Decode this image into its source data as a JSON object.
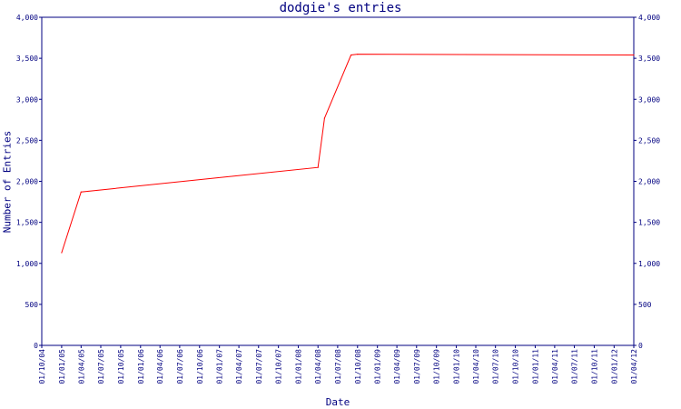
{
  "chart_data": {
    "type": "line",
    "title": "dodgie's entries",
    "xlabel": "Date",
    "ylabel": "Number of Entries",
    "ylim": [
      0,
      4000
    ],
    "y_ticks": [
      {
        "value": 0,
        "label": "0"
      },
      {
        "value": 500,
        "label": "500"
      },
      {
        "value": 1000,
        "label": "1,000"
      },
      {
        "value": 1500,
        "label": "1,500"
      },
      {
        "value": 2000,
        "label": "2,000"
      },
      {
        "value": 2500,
        "label": "2,500"
      },
      {
        "value": 3000,
        "label": "3,000"
      },
      {
        "value": 3500,
        "label": "3,500"
      },
      {
        "value": 4000,
        "label": "4,000"
      }
    ],
    "x_ticks": [
      "01/10/04",
      "01/01/05",
      "01/04/05",
      "01/07/05",
      "01/10/05",
      "01/01/06",
      "01/04/06",
      "01/07/06",
      "01/10/06",
      "01/01/07",
      "01/04/07",
      "01/07/07",
      "01/10/07",
      "01/01/08",
      "01/04/08",
      "01/07/08",
      "01/10/08",
      "01/01/09",
      "01/04/09",
      "01/07/09",
      "01/10/09",
      "01/01/10",
      "01/04/10",
      "01/07/10",
      "01/10/10",
      "01/01/11",
      "01/04/11",
      "01/07/11",
      "01/10/11",
      "01/01/12",
      "01/04/12"
    ],
    "grid": false,
    "legend": "none",
    "series": [
      {
        "color": "#ff0000",
        "points": [
          {
            "x": "01/01/05",
            "y": 1130
          },
          {
            "x": "01/04/05",
            "y": 1870
          },
          {
            "x": "01/04/08",
            "y": 2170
          },
          {
            "x": "01/05/08",
            "y": 2770
          },
          {
            "x": "01/09/08",
            "y": 3540
          },
          {
            "x": "01/10/08",
            "y": 3550
          },
          {
            "x": "01/04/12",
            "y": 3540
          }
        ]
      }
    ],
    "colors": {
      "axis": "#000080",
      "text": "#000080",
      "line": "#ff0000"
    }
  }
}
